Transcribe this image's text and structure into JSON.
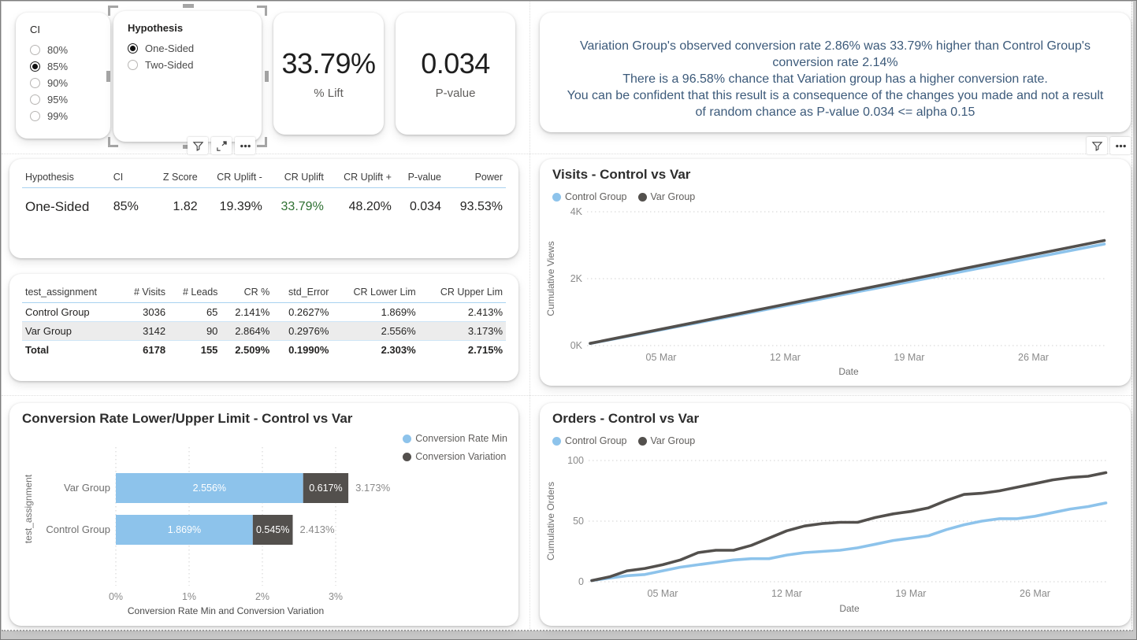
{
  "colors": {
    "control_blue": "#8dc3eb",
    "variation_gray": "#53504d",
    "narrative_text": "#3c5a7a",
    "uplift_green": "#2e7031",
    "separator_blue": "#a8d2f0"
  },
  "slicers": {
    "ci": {
      "title": "CI",
      "options": [
        {
          "label": "80%",
          "selected": false
        },
        {
          "label": "85%",
          "selected": true
        },
        {
          "label": "90%",
          "selected": false
        },
        {
          "label": "95%",
          "selected": false
        },
        {
          "label": "99%",
          "selected": false
        }
      ]
    },
    "hypothesis": {
      "title": "Hypothesis",
      "options": [
        {
          "label": "One-Sided",
          "selected": true
        },
        {
          "label": "Two-Sided",
          "selected": false
        }
      ]
    }
  },
  "toolbar_icons": [
    "filter",
    "focus-mode",
    "more-options"
  ],
  "textbox_toolbar_icons": [
    "filter",
    "more-options"
  ],
  "kpis": {
    "lift": {
      "value": "33.79%",
      "label": "% Lift"
    },
    "pvalue": {
      "value": "0.034",
      "label": "P-value"
    }
  },
  "narrative": {
    "line1": "Variation Group's observed conversion rate 2.86% was 33.79% higher than Control Group's conversion rate 2.14%",
    "line2": "There is a 96.58% chance that Variation group has a higher conversion rate.",
    "line3": "You can be confident that this result is a consequence of the changes you made and not a result of random chance as P-value 0.034 <= alpha 0.15"
  },
  "hypothesis_table": {
    "columns": [
      "Hypothesis",
      "CI",
      "Z Score",
      "CR Uplift -",
      "CR Uplift",
      "CR Uplift +",
      "P-value",
      "Power"
    ],
    "row": [
      "One-Sided",
      "85%",
      "1.82",
      "19.39%",
      "33.79%",
      "48.20%",
      "0.034",
      "93.53%"
    ],
    "uplift_col_index": 4
  },
  "assignment_table": {
    "columns": [
      "test_assignment",
      "# Visits",
      "# Leads",
      "CR %",
      "std_Error",
      "CR Lower Lim",
      "CR Upper Lim"
    ],
    "rows": [
      [
        "Control Group",
        "3036",
        "65",
        "2.141%",
        "0.2627%",
        "1.869%",
        "2.413%"
      ],
      [
        "Var Group",
        "3142",
        "90",
        "2.864%",
        "0.2976%",
        "2.556%",
        "3.173%"
      ]
    ],
    "total": [
      "Total",
      "6178",
      "155",
      "2.509%",
      "0.1990%",
      "2.303%",
      "2.715%"
    ]
  },
  "chart_data": [
    {
      "id": "cr_limits",
      "type": "bar",
      "orientation": "horizontal",
      "stacked": true,
      "title": "Conversion Rate Lower/Upper Limit - Control vs Var",
      "categories": [
        "Var Group",
        "Control Group"
      ],
      "series": [
        {
          "name": "Conversion Rate Min",
          "color": "#8dc3eb",
          "values": [
            2.556,
            1.869
          ],
          "labels": [
            "2.556%",
            "1.869%"
          ]
        },
        {
          "name": "Conversion Variation",
          "color": "#53504d",
          "values": [
            0.617,
            0.545
          ],
          "labels": [
            "0.617%",
            "0.545%"
          ]
        }
      ],
      "total_labels": [
        "3.173%",
        "2.413%"
      ],
      "xlabel": "Conversion Rate Min and Conversion Variation",
      "ylabel": "test_assignment",
      "x_ticks": [
        {
          "value": 0,
          "label": "0%"
        },
        {
          "value": 1,
          "label": "1%"
        },
        {
          "value": 2,
          "label": "2%"
        },
        {
          "value": 3,
          "label": "3%"
        }
      ],
      "xlim": [
        0,
        3.6
      ],
      "legend_position": "right-top-vertical",
      "grid": "vertical-dotted"
    },
    {
      "id": "visits",
      "type": "line",
      "title": "Visits - Control vs Var",
      "xlabel": "Date",
      "ylabel": "Cumulative Views",
      "ylim": [
        0,
        4000
      ],
      "y_ticks": [
        {
          "value": 0,
          "label": "0K"
        },
        {
          "value": 2000,
          "label": "2K"
        },
        {
          "value": 4000,
          "label": "4K"
        }
      ],
      "x_ticks": [
        {
          "index": 4,
          "label": "05 Mar"
        },
        {
          "index": 11,
          "label": "12 Mar"
        },
        {
          "index": 18,
          "label": "19 Mar"
        },
        {
          "index": 25,
          "label": "26 Mar"
        }
      ],
      "x_range": "01 Mar - 30 Mar",
      "legend_position": "top-left",
      "grid": "horizontal-dotted",
      "series": [
        {
          "name": "Control Group",
          "color": "#8dc3eb",
          "values": [
            60,
            163,
            265,
            368,
            470,
            573,
            676,
            778,
            881,
            983,
            1086,
            1189,
            1291,
            1394,
            1496,
            1599,
            1702,
            1804,
            1907,
            2009,
            2112,
            2215,
            2317,
            2420,
            2522,
            2625,
            2728,
            2830,
            2933,
            3036
          ]
        },
        {
          "name": "Var Group",
          "color": "#53504d",
          "values": [
            65,
            171,
            277,
            383,
            489,
            595,
            702,
            808,
            914,
            1020,
            1126,
            1232,
            1338,
            1444,
            1551,
            1657,
            1763,
            1869,
            1975,
            2081,
            2187,
            2293,
            2400,
            2506,
            2612,
            2718,
            2824,
            2930,
            3036,
            3142
          ]
        }
      ]
    },
    {
      "id": "orders",
      "type": "line",
      "title": "Orders - Control vs Var",
      "xlabel": "Date",
      "ylabel": "Cumulative Orders",
      "ylim": [
        0,
        100
      ],
      "y_ticks": [
        {
          "value": 0,
          "label": "0"
        },
        {
          "value": 50,
          "label": "50"
        },
        {
          "value": 100,
          "label": "100"
        }
      ],
      "x_ticks": [
        {
          "index": 4,
          "label": "05 Mar"
        },
        {
          "index": 11,
          "label": "12 Mar"
        },
        {
          "index": 18,
          "label": "19 Mar"
        },
        {
          "index": 25,
          "label": "26 Mar"
        }
      ],
      "x_range": "01 Mar - 30 Mar",
      "legend_position": "top-left",
      "grid": "horizontal-dotted",
      "series": [
        {
          "name": "Control Group",
          "color": "#8dc3eb",
          "values": [
            1,
            3,
            5,
            6,
            9,
            12,
            14,
            16,
            18,
            19,
            19,
            22,
            24,
            25,
            26,
            28,
            31,
            34,
            36,
            38,
            43,
            47,
            50,
            52,
            52,
            54,
            57,
            60,
            62,
            65
          ]
        },
        {
          "name": "Var Group",
          "color": "#53504d",
          "values": [
            1,
            4,
            9,
            11,
            14,
            18,
            24,
            26,
            26,
            30,
            36,
            42,
            46,
            48,
            49,
            49,
            53,
            56,
            58,
            61,
            67,
            72,
            73,
            75,
            78,
            81,
            84,
            86,
            87,
            90
          ]
        }
      ]
    }
  ]
}
